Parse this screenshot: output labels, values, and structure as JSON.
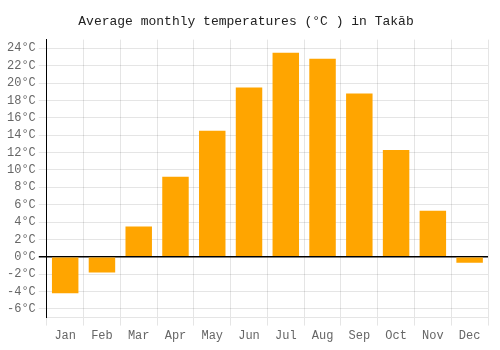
{
  "chart_data": {
    "type": "bar",
    "title": "Average monthly temperatures (°C ) in Takāb",
    "categories": [
      "Jan",
      "Feb",
      "Mar",
      "Apr",
      "May",
      "Jun",
      "Jul",
      "Aug",
      "Sep",
      "Oct",
      "Nov",
      "Dec"
    ],
    "values": [
      -4.2,
      -1.8,
      3.5,
      9.2,
      14.5,
      19.5,
      23.5,
      22.8,
      18.8,
      12.3,
      5.3,
      -0.7
    ],
    "color": "#FFA500",
    "ylim": [
      -7,
      25
    ],
    "yticks": [
      {
        "value": -6,
        "label": "-6°C"
      },
      {
        "value": -4,
        "label": "-4°C"
      },
      {
        "value": -2,
        "label": "-2°C"
      },
      {
        "value": 0,
        "label": "0°C"
      },
      {
        "value": 2,
        "label": "2°C"
      },
      {
        "value": 4,
        "label": "4°C"
      },
      {
        "value": 6,
        "label": "6°C"
      },
      {
        "value": 8,
        "label": "8°C"
      },
      {
        "value": 10,
        "label": "10°C"
      },
      {
        "value": 12,
        "label": "12°C"
      },
      {
        "value": 14,
        "label": "14°C"
      },
      {
        "value": 16,
        "label": "16°C"
      },
      {
        "value": 18,
        "label": "18°C"
      },
      {
        "value": 20,
        "label": "20°C"
      },
      {
        "value": 22,
        "label": "22°C"
      },
      {
        "value": 24,
        "label": "24°C"
      }
    ],
    "grid": true
  }
}
